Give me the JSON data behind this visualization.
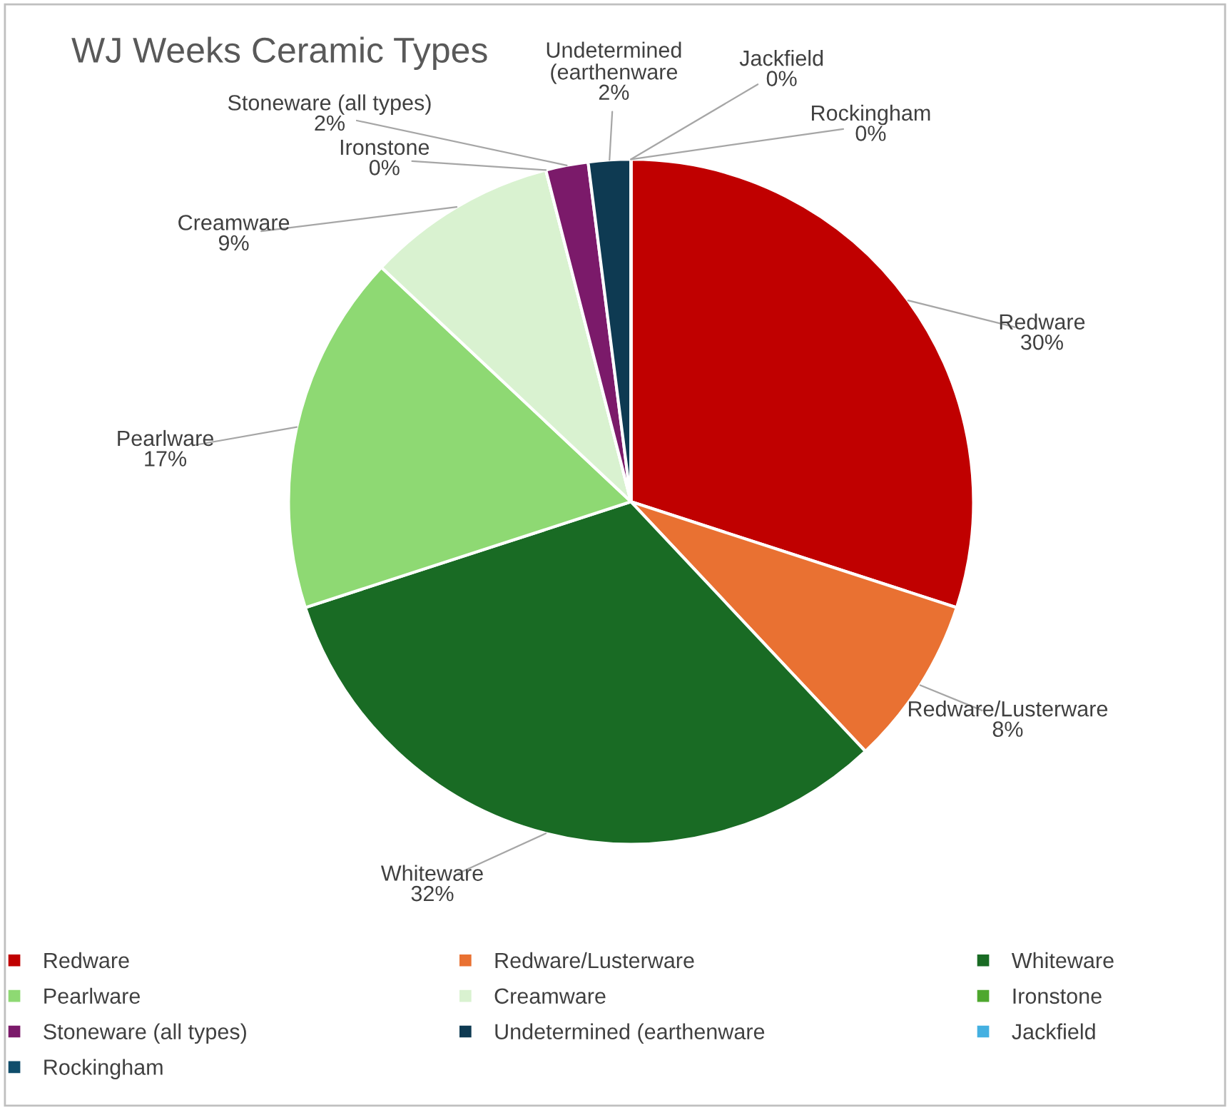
{
  "chart_data": {
    "type": "pie",
    "title": "WJ Weeks Ceramic Types",
    "categories": [
      "Redware",
      "Redware/Lusterware",
      "Whiteware",
      "Pearlware",
      "Creamware",
      "Ironstone",
      "Stoneware (all types)",
      "Undetermined (earthenware",
      "Jackfield",
      "Rockingham"
    ],
    "values": [
      30,
      8,
      32,
      17,
      9,
      0,
      2,
      2,
      0,
      0
    ],
    "colors": [
      "#c00000",
      "#e97132",
      "#196b24",
      "#8ed973",
      "#d9f2d0",
      "#4ea72e",
      "#7b1a6a",
      "#0e3a52",
      "#44b0e1",
      "#0f4d6b"
    ],
    "value_labels": [
      "30%",
      "8%",
      "32%",
      "17%",
      "9%",
      "0%",
      "2%",
      "2%",
      "0%",
      "0%"
    ],
    "legend": "bottom"
  }
}
